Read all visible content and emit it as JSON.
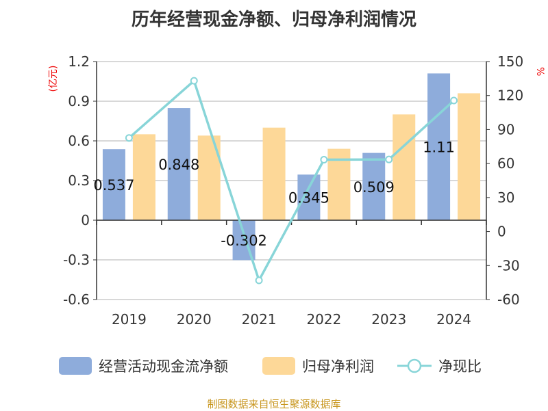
{
  "chart_data": {
    "type": "bar",
    "title": "历年经营现金净额、归母净利润情况",
    "categories": [
      "2019",
      "2020",
      "2021",
      "2022",
      "2023",
      "2024"
    ],
    "series": [
      {
        "name": "经营活动现金流净额",
        "type": "bar",
        "axis": "left",
        "color": "#8eacdb",
        "values": [
          0.537,
          0.848,
          -0.302,
          0.345,
          0.509,
          1.11
        ],
        "labels": [
          "0.537",
          "0.848",
          "-0.302",
          "0.345",
          "0.509",
          "1.11"
        ]
      },
      {
        "name": "归母净利润",
        "type": "bar",
        "axis": "left",
        "color": "#fdd898",
        "values": [
          0.65,
          0.64,
          0.7,
          0.54,
          0.8,
          0.96
        ]
      },
      {
        "name": "净现比",
        "type": "line",
        "axis": "right",
        "color": "#88d5d8",
        "values": [
          82.6,
          133.0,
          -43.1,
          63.4,
          63.6,
          115.6
        ]
      }
    ],
    "ylabel_left": "(亿元)",
    "ylabel_right": "%",
    "ylim_left": [
      -0.6,
      1.2
    ],
    "yticks_left": [
      "1.2",
      "0.9",
      "0.6",
      "0.3",
      "0",
      "-0.3",
      "-0.6"
    ],
    "ylim_right": [
      -60,
      150
    ],
    "yticks_right": [
      "150",
      "120",
      "90",
      "60",
      "30",
      "0",
      "-30",
      "-60"
    ],
    "legend_position": "bottom",
    "grid": true
  },
  "source": "制图数据来自恒生聚源数据库"
}
